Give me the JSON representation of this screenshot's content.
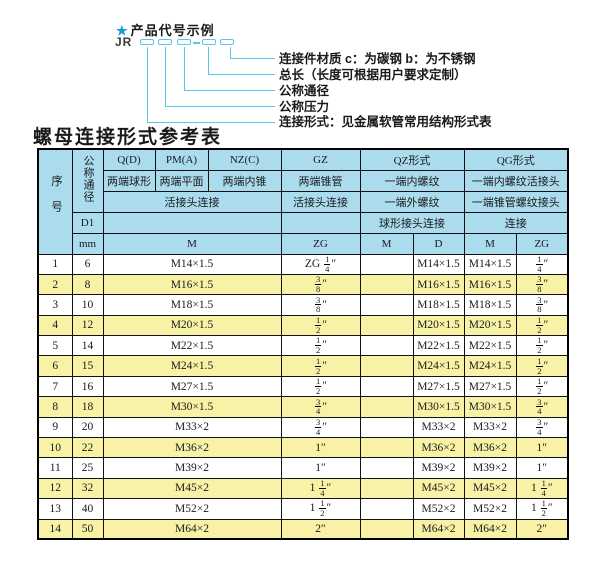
{
  "diagram": {
    "star_icon": "★",
    "title": "产品代号示例",
    "prefix": "JR",
    "labels": [
      "连接件材质 c：为碳钢 b：为不锈钢",
      "总长（长度可根据用户要求定制）",
      "公称通径",
      "公称压力",
      "连接形式：见金属软管常用结构形式表"
    ]
  },
  "table": {
    "title": "螺母连接形式参考表",
    "header": {
      "seq": "序号",
      "dn": "公称通径",
      "d1": "D1",
      "mm": "mm",
      "groups": [
        "Q(D)",
        "PM(A)",
        "NZ(C)",
        "GZ",
        "QZ形式",
        "QG形式"
      ],
      "desc_row": [
        "两端球形",
        "两端平面",
        "两端内锥",
        "两端锥管",
        "一端内螺纹",
        "一端内螺纹活接头"
      ],
      "conn_row": [
        "活接头连接",
        "活接头连接",
        "一端外螺纹",
        "一端锥管螺纹接头"
      ],
      "conn2_row": [
        "球形接头连接",
        "连接"
      ],
      "unit_row": [
        "M",
        "ZG",
        "M",
        "D",
        "M",
        "ZG"
      ]
    },
    "rows": [
      [
        "1",
        "6",
        "M14×1.5",
        "ZG 1/4″",
        "",
        "M14×1.5",
        "M14×1.5",
        "1/4″"
      ],
      [
        "2",
        "8",
        "M16×1.5",
        "3/8″",
        "",
        "M16×1.5",
        "M16×1.5",
        "3/8″"
      ],
      [
        "3",
        "10",
        "M18×1.5",
        "3/8″",
        "",
        "M18×1.5",
        "M18×1.5",
        "3/8″"
      ],
      [
        "4",
        "12",
        "M20×1.5",
        "1/2″",
        "",
        "M20×1.5",
        "M20×1.5",
        "1/2″"
      ],
      [
        "5",
        "14",
        "M22×1.5",
        "1/2″",
        "",
        "M22×1.5",
        "M22×1.5",
        "1/2″"
      ],
      [
        "6",
        "15",
        "M24×1.5",
        "1/2″",
        "",
        "M24×1.5",
        "M24×1.5",
        "1/2″"
      ],
      [
        "7",
        "16",
        "M27×1.5",
        "1/2″",
        "",
        "M27×1.5",
        "M27×1.5",
        "1/2″"
      ],
      [
        "8",
        "18",
        "M30×1.5",
        "3/4″",
        "",
        "M30×1.5",
        "M30×1.5",
        "3/4″"
      ],
      [
        "9",
        "20",
        "M33×2",
        "3/4″",
        "",
        "M33×2",
        "M33×2",
        "3/4″"
      ],
      [
        "10",
        "22",
        "M36×2",
        "1″",
        "",
        "M36×2",
        "M36×2",
        "1″"
      ],
      [
        "11",
        "25",
        "M39×2",
        "1″",
        "",
        "M39×2",
        "M39×2",
        "1″"
      ],
      [
        "12",
        "32",
        "M45×2",
        "1 1/4″",
        "",
        "M45×2",
        "M45×2",
        "1 1/4″"
      ],
      [
        "13",
        "40",
        "M52×2",
        "1 1/2″",
        "",
        "M52×2",
        "M52×2",
        "1 1/2″"
      ],
      [
        "14",
        "50",
        "M64×2",
        "2″",
        "",
        "M64×2",
        "M64×2",
        "2″"
      ]
    ],
    "colors": {
      "header_bg": "#aadcee",
      "row_alt_bg": "#f7f2a6",
      "row_bg": "#ffffff",
      "accent_line": "#5ec7e8",
      "star_color": "#1a9ad2",
      "border": "#111111"
    }
  }
}
